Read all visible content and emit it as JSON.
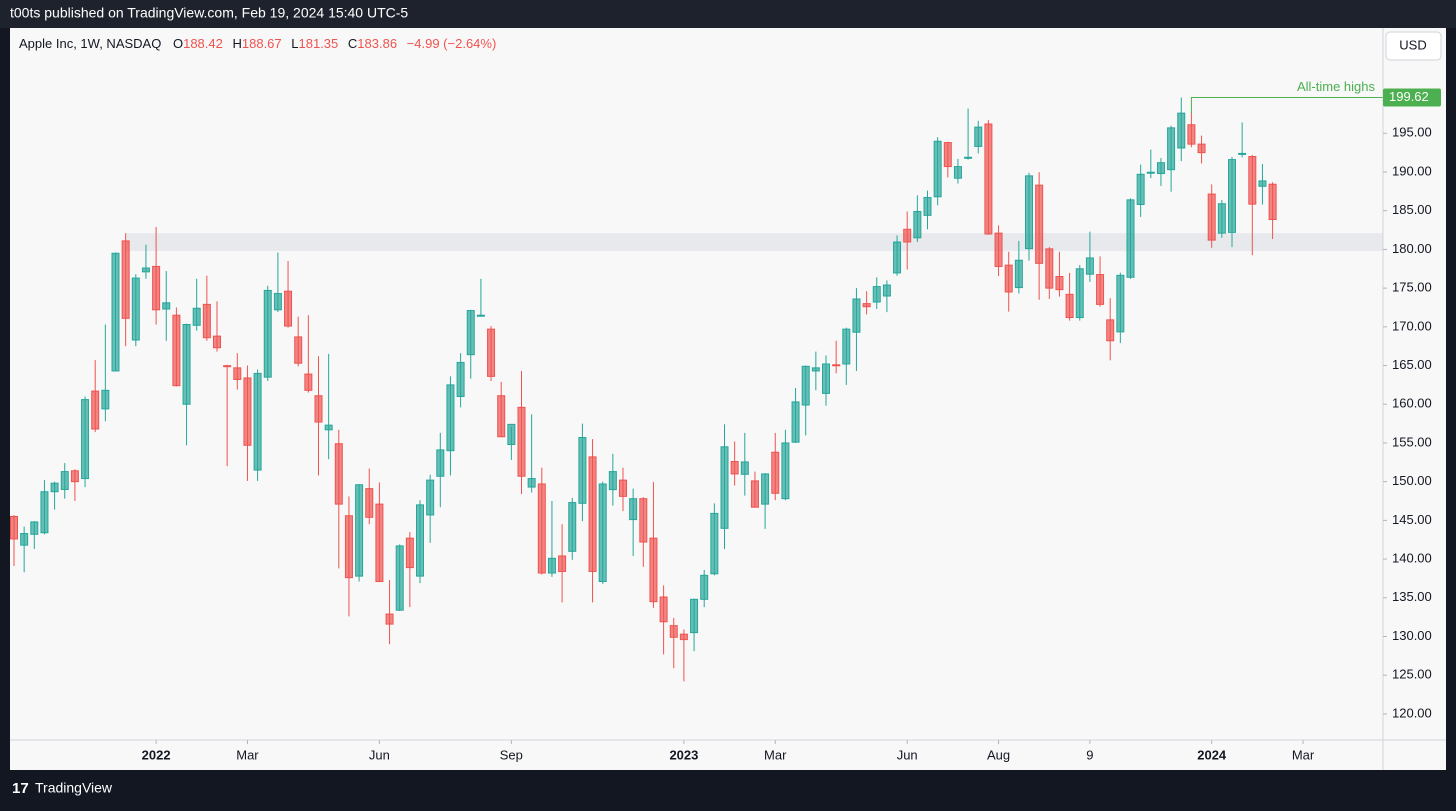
{
  "header": {
    "text": "t00ts published on TradingView.com, Feb 19, 2024 15:40 UTC-5"
  },
  "legend": {
    "symbol": "Apple Inc, 1W, NASDAQ",
    "o_label": "O",
    "o": "188.42",
    "h_label": "H",
    "h": "188.67",
    "l_label": "L",
    "l": "181.35",
    "c_label": "C",
    "c": "183.86",
    "change": "−4.99 (−2.64%)"
  },
  "currency": "USD",
  "footer": {
    "brand": "TradingView"
  },
  "chart_data": {
    "type": "candlestick",
    "up_color": "#26a69a",
    "down_color": "#ef5350",
    "open": [
      145.5,
      141.8,
      143.2,
      143.4,
      148.7,
      148.99,
      151.4,
      150.4,
      161.7,
      159.4,
      164.3,
      181.1,
      168.3,
      177.1,
      177.8,
      172.3,
      171.5,
      160,
      170.2,
      172.9,
      168.8,
      164.98,
      164.7,
      163.4,
      151.5,
      163.5,
      172.2,
      174.6,
      168.7,
      163.9,
      161.1,
      156.7,
      154.9,
      145.6,
      137.8,
      149.1,
      147.1,
      132.9,
      133.4,
      142.7,
      137.8,
      145.7,
      150.7,
      154,
      161,
      166.4,
      171.5,
      169.7,
      161.1,
      154.8,
      159.6,
      149.3,
      149.7,
      138.2,
      140.4,
      141,
      147.2,
      153.2,
      137.1,
      148.97,
      150.2,
      145.1,
      147.8,
      142.7,
      135.1,
      131.4,
      130.3,
      130.5,
      134.8,
      138.1,
      143.97,
      152.6,
      150.95,
      150.1,
      147.1,
      153.8,
      147.8,
      155.1,
      159.9,
      164.3,
      161.4,
      165.1,
      165.2,
      169.3,
      173,
      173.2,
      173.98,
      176.96,
      182.6,
      181.5,
      184.4,
      186.8,
      193.8,
      189.2,
      191.9,
      193.3,
      196.2,
      182.1,
      177.97,
      175.07,
      180.1,
      188.3,
      180.07,
      176.5,
      174.2,
      171.2,
      176.8,
      176.75,
      170.9,
      169.35,
      176.4,
      185.8,
      189.9,
      189.8,
      190.3,
      193.1,
      196.1,
      193.6,
      187.15,
      182.1,
      182.2,
      192.3,
      192,
      188.15,
      188.42
    ],
    "high": [
      145.7,
      144.2,
      144.9,
      150.2,
      150,
      152.4,
      151.6,
      161,
      165.7,
      170.3,
      179.6,
      182.1,
      176.8,
      180.6,
      182.9,
      177.2,
      172.5,
      170.4,
      176.2,
      176.6,
      173.3,
      165.1,
      166.6,
      165,
      164.5,
      175.3,
      179.6,
      178.5,
      171.3,
      171.5,
      166.2,
      166.5,
      156.7,
      148.1,
      149.7,
      151.7,
      149.9,
      137.3,
      141.9,
      143.5,
      147.6,
      150.9,
      156.3,
      163.6,
      166.6,
      172.2,
      176.2,
      170.1,
      162.9,
      157.1,
      164.3,
      158.7,
      151.8,
      147.5,
      144.5,
      147.9,
      157.5,
      155.5,
      150,
      153.6,
      151.8,
      149.1,
      148,
      149.97,
      136.6,
      132.4,
      130.9,
      134.9,
      138.6,
      147.2,
      157.4,
      155.2,
      156.3,
      151.3,
      151.1,
      156.3,
      156.7,
      162.1,
      165,
      166.8,
      166.3,
      168.2,
      169.9,
      175,
      174.6,
      176.4,
      176,
      181.8,
      184.9,
      186.99,
      187.6,
      194.5,
      193.9,
      191.7,
      198.2,
      196.6,
      196.7,
      183.1,
      179.7,
      181.1,
      189.9,
      189.98,
      180.3,
      179.7,
      176.97,
      177.99,
      182.3,
      179.1,
      173.7,
      177,
      186.6,
      190.96,
      192.9,
      191.8,
      195.99,
      199.62,
      197.7,
      194.7,
      188.4,
      186.4,
      191.95,
      196.4,
      192.2,
      191.05,
      188.67
    ],
    "low": [
      139.1,
      138.3,
      141.3,
      143.2,
      146.4,
      147.8,
      147.5,
      149.3,
      156.4,
      157.8,
      164.3,
      167.5,
      167.5,
      176.2,
      170.3,
      168.2,
      162.3,
      154.7,
      169.5,
      168.2,
      166.8,
      152,
      161.9,
      150.1,
      150.1,
      163,
      171.9,
      169.9,
      164.9,
      161.5,
      150.8,
      152.9,
      138.8,
      132.6,
      137.1,
      144.5,
      137.1,
      129,
      133.3,
      133.8,
      136.9,
      142.1,
      146.7,
      150.8,
      159.6,
      163.3,
      171.3,
      163,
      155.8,
      152.8,
      148.4,
      148.6,
      138,
      137.7,
      134.4,
      139.9,
      144.9,
      134.4,
      136.8,
      146.9,
      146.2,
      140.4,
      139,
      133.7,
      127.7,
      125.9,
      124.2,
      128.1,
      133.8,
      137.9,
      141.3,
      149.5,
      148.2,
      146.7,
      143.9,
      147.6,
      147.6,
      155,
      155.98,
      161.8,
      159.8,
      164,
      162.5,
      164.3,
      171.6,
      172.3,
      171.9,
      176.6,
      177.4,
      180.97,
      182.6,
      185.7,
      189.3,
      188.5,
      191.6,
      192.4,
      181.9,
      176.55,
      171.96,
      174.3,
      178.55,
      173.5,
      173.6,
      173.9,
      170.8,
      170.8,
      175.8,
      172.6,
      165.67,
      167.9,
      176.2,
      184.2,
      189.2,
      188.2,
      187.45,
      191.4,
      193.2,
      191.1,
      180.2,
      181.5,
      180.3,
      191.9,
      179.25,
      185.8,
      181.35
    ],
    "close": [
      142.6,
      143.3,
      144.8,
      148.7,
      149.8,
      151.3,
      150,
      160.6,
      156.8,
      161.8,
      179.5,
      171.1,
      176.3,
      177.6,
      172.2,
      173.1,
      162.4,
      170.3,
      172.4,
      168.6,
      167.3,
      164.9,
      163.2,
      154.7,
      163.98,
      174.7,
      174.3,
      170.1,
      165.3,
      161.8,
      157.7,
      157.3,
      147.1,
      137.6,
      149.6,
      145.4,
      137.1,
      131.6,
      141.7,
      138.9,
      147,
      150.2,
      154.1,
      162.5,
      165.4,
      172.1,
      171.5,
      163.6,
      155.8,
      157.4,
      150.7,
      150.4,
      138.2,
      140.1,
      138.4,
      147.3,
      155.7,
      138.4,
      149.7,
      151.3,
      148.1,
      147.8,
      142.2,
      134.5,
      131.9,
      129.9,
      129.6,
      134.8,
      137.9,
      145.9,
      154.5,
      151,
      152.55,
      146.7,
      151,
      148.5,
      155,
      160.3,
      164.9,
      164.7,
      165.2,
      165,
      169.7,
      173.6,
      172.6,
      175.2,
      175.4,
      180.95,
      180.96,
      184.9,
      186.7,
      193.97,
      190.7,
      190.7,
      191.9,
      195.8,
      181.99,
      177.8,
      174.5,
      178.6,
      189.5,
      178.2,
      175,
      174.8,
      171.2,
      177.5,
      178.9,
      172.9,
      168.2,
      176.65,
      186.4,
      189.7,
      189.97,
      191.2,
      195.7,
      197.6,
      193.6,
      192.5,
      181.2,
      185.9,
      191.6,
      192.4,
      185.85,
      188.85,
      183.86
    ],
    "ylim": [
      116.63,
      208.6
    ],
    "yticks": [
      {
        "value": 120,
        "label": "120.00"
      },
      {
        "value": 125,
        "label": "125.00"
      },
      {
        "value": 130,
        "label": "130.00"
      },
      {
        "value": 135,
        "label": "135.00"
      },
      {
        "value": 140,
        "label": "140.00"
      },
      {
        "value": 145,
        "label": "145.00"
      },
      {
        "value": 150,
        "label": "150.00"
      },
      {
        "value": 155,
        "label": "155.00"
      },
      {
        "value": 160,
        "label": "160.00"
      },
      {
        "value": 165,
        "label": "165.00"
      },
      {
        "value": 170,
        "label": "170.00"
      },
      {
        "value": 175,
        "label": "175.00"
      },
      {
        "value": 180,
        "label": "180.00"
      },
      {
        "value": 185,
        "label": "185.00"
      },
      {
        "value": 190,
        "label": "190.00"
      },
      {
        "value": 195,
        "label": "195.00"
      }
    ],
    "xticks": [
      {
        "value": 14,
        "label": "2022"
      },
      {
        "value": 23,
        "label": "Mar"
      },
      {
        "value": 36,
        "label": "Jun"
      },
      {
        "value": 49,
        "label": "Sep"
      },
      {
        "value": 66,
        "label": "2023"
      },
      {
        "value": 75,
        "label": "Mar"
      },
      {
        "value": 88,
        "label": "Jun"
      },
      {
        "value": 97,
        "label": "Aug"
      },
      {
        "value": 106,
        "label": "9"
      },
      {
        "value": 118,
        "label": "2024"
      },
      {
        "value": 127,
        "label": "Mar"
      }
    ],
    "zone": {
      "low": 179.8,
      "high": 182.1,
      "start": 11
    },
    "annotation": {
      "text": "All-time highs",
      "value": {
        "value": 199.62,
        "label": "199.62"
      },
      "index": 116,
      "color": "#4caf50"
    }
  }
}
